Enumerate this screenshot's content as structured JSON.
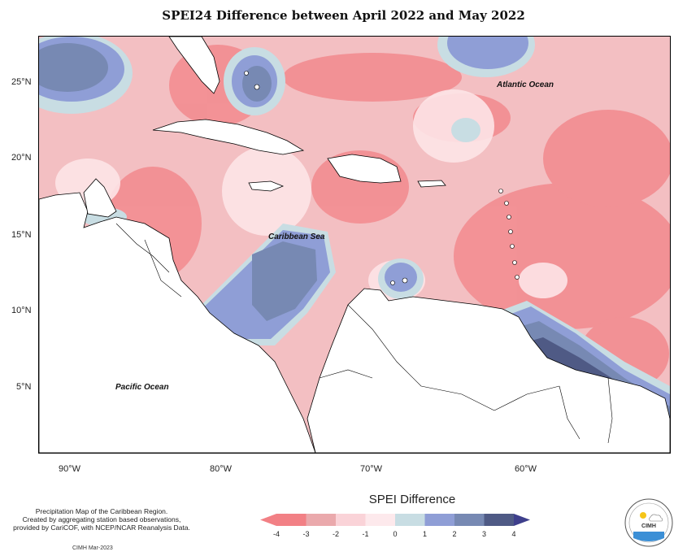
{
  "title": "SPEI24 Difference between April 2022 and May 2022",
  "map": {
    "place_labels": [
      {
        "text": "Atlantic Ocean"
      },
      {
        "text": "Caribbean Sea"
      },
      {
        "text": "Pacific Ocean"
      }
    ],
    "lat_ticks": [
      "25°N",
      "20°N",
      "15°N",
      "10°N",
      "5°N"
    ],
    "lon_ticks": [
      "90°W",
      "80°W",
      "70°W",
      "60°W"
    ]
  },
  "note": {
    "line1": "Precipitation Map of the Caribbean Region.",
    "line2": "Created by aggregating station based observations,",
    "line3": "provided by CariCOF, with NCEP/NCAR Reanalysis Data.",
    "credit": "CIMH Mar-2023"
  },
  "legend": {
    "title": "SPEI Difference",
    "labels": [
      "-4",
      "-3",
      "-2",
      "-1",
      "0",
      "1",
      "2",
      "3",
      "4"
    ],
    "colors": [
      "#f28085",
      "#eaa9ac",
      "#fad3d8",
      "#fde9ec",
      "#c8dde3",
      "#8f9ed6",
      "#7789b3",
      "#4f5a85",
      "#3e3f8c"
    ]
  },
  "logo": {
    "text": "CIMH"
  }
}
